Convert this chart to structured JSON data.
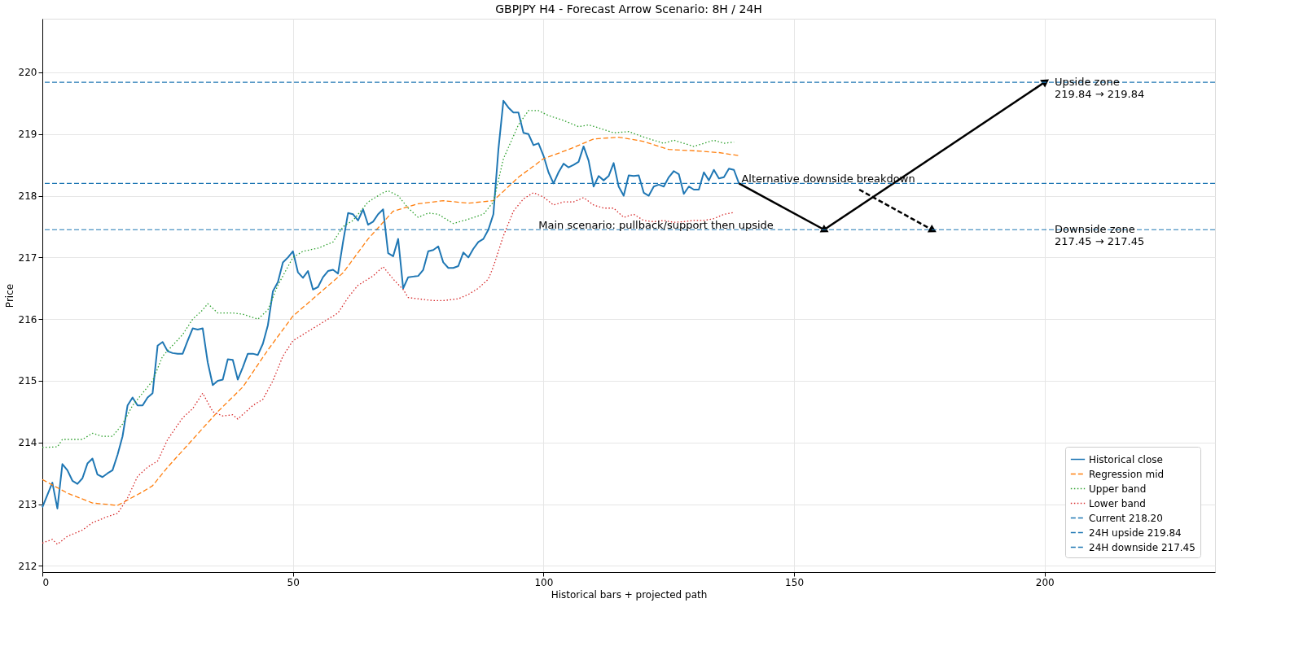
{
  "chart_data": {
    "type": "line",
    "title": "GBPJPY H4 - Forecast Arrow Scenario: 8H / 24H",
    "xlabel": "Historical bars + projected path",
    "ylabel": "Price",
    "xlim": [
      0,
      234
    ],
    "ylim": [
      211.9,
      220.87
    ],
    "xticks": [
      0,
      50,
      100,
      150,
      200
    ],
    "yticks": [
      212,
      213,
      214,
      215,
      216,
      217,
      218,
      219,
      220
    ],
    "grid": true,
    "legend": "bottom right",
    "series": [
      {
        "name": "Historical close",
        "color": "#1f77b4",
        "line_style": "solid",
        "x": [
          0,
          2,
          3,
          4,
          5,
          6,
          7,
          8,
          9,
          10,
          11,
          12,
          13,
          14,
          15,
          16,
          17,
          18,
          19,
          20,
          21,
          22,
          23,
          24,
          25,
          26,
          27,
          28,
          29,
          30,
          31,
          32,
          33,
          34,
          35,
          36,
          37,
          38,
          39,
          40,
          41,
          42,
          43,
          44,
          45,
          46,
          47,
          48,
          49,
          50,
          51,
          52,
          53,
          54,
          55,
          56,
          57,
          58,
          59,
          60,
          61,
          62,
          63,
          64,
          65,
          66,
          67,
          68,
          69,
          70,
          71,
          72,
          73,
          74,
          75,
          76,
          77,
          78,
          79,
          80,
          81,
          82,
          83,
          84,
          85,
          86,
          87,
          88,
          89,
          90,
          91,
          92,
          93,
          94,
          95,
          96,
          97,
          98,
          99,
          100,
          101,
          102,
          103,
          104,
          105,
          106,
          107,
          108,
          109,
          110,
          111,
          112,
          113,
          114,
          115,
          116,
          117,
          118,
          119,
          120,
          121,
          122,
          123,
          124,
          125,
          126,
          127,
          128,
          129,
          130,
          131,
          132,
          133,
          134,
          135,
          136,
          137,
          138,
          139
        ],
        "values": [
          212.95,
          213.35,
          212.93,
          213.65,
          213.55,
          213.38,
          213.33,
          213.42,
          213.66,
          213.74,
          213.48,
          213.44,
          213.5,
          213.55,
          213.8,
          214.1,
          214.6,
          214.73,
          214.6,
          214.6,
          214.73,
          214.8,
          215.57,
          215.63,
          215.48,
          215.45,
          215.44,
          215.44,
          215.65,
          215.85,
          215.83,
          215.85,
          215.3,
          214.93,
          215.0,
          215.02,
          215.35,
          215.34,
          215.02,
          215.22,
          215.44,
          215.44,
          215.42,
          215.6,
          215.9,
          216.45,
          216.6,
          216.92,
          217.0,
          217.1,
          216.76,
          216.67,
          216.78,
          216.48,
          216.52,
          216.68,
          216.78,
          216.8,
          216.74,
          217.25,
          217.72,
          217.7,
          217.6,
          217.78,
          217.53,
          217.58,
          217.7,
          217.78,
          217.07,
          217.02,
          217.3,
          216.5,
          216.68,
          216.69,
          216.7,
          216.8,
          217.1,
          217.12,
          217.18,
          216.92,
          216.83,
          216.83,
          216.86,
          217.08,
          217.0,
          217.14,
          217.25,
          217.3,
          217.45,
          217.7,
          218.75,
          219.54,
          219.43,
          219.35,
          219.35,
          219.02,
          219.0,
          218.82,
          218.85,
          218.65,
          218.38,
          218.2,
          218.38,
          218.52,
          218.46,
          218.5,
          218.55,
          218.8,
          218.57,
          218.15,
          218.32,
          218.25,
          218.32,
          218.53,
          218.15,
          218.0,
          218.33,
          218.32,
          218.33,
          218.05,
          218.0,
          218.15,
          218.18,
          218.15,
          218.3,
          218.4,
          218.35,
          218.03,
          218.15,
          218.1,
          218.1,
          218.38,
          218.25,
          218.42,
          218.28,
          218.3,
          218.44,
          218.42,
          218.2
        ]
      },
      {
        "name": "Regression mid",
        "color": "#ff7f0e",
        "line_style": "dashed",
        "x": [
          0,
          5,
          10,
          15,
          20,
          22,
          25,
          30,
          35,
          40,
          45,
          50,
          55,
          60,
          65,
          70,
          75,
          80,
          85,
          90,
          95,
          100,
          105,
          110,
          115,
          120,
          125,
          130,
          135,
          139
        ],
        "values": [
          213.4,
          213.18,
          213.02,
          212.98,
          213.2,
          213.3,
          213.6,
          214.05,
          214.5,
          214.9,
          215.5,
          216.05,
          216.4,
          216.75,
          217.3,
          217.75,
          217.87,
          217.92,
          217.88,
          217.92,
          218.3,
          218.6,
          218.75,
          218.92,
          218.95,
          218.88,
          218.75,
          218.73,
          218.7,
          218.65
        ]
      },
      {
        "name": "Upper band",
        "color": "#2ca02c",
        "line_style": "dotted",
        "x": [
          0,
          3,
          4,
          8,
          10,
          12,
          14,
          16,
          18,
          22,
          24,
          28,
          30,
          32,
          33,
          35,
          38,
          40,
          43,
          45,
          47,
          50,
          52,
          55,
          58,
          60,
          62,
          65,
          68,
          69,
          71,
          73,
          75,
          77,
          79,
          82,
          85,
          88,
          90,
          92,
          95,
          97,
          99,
          101,
          104,
          107,
          109,
          111,
          114,
          117,
          119,
          122,
          124,
          126,
          128,
          130,
          132,
          134,
          136,
          138
        ],
        "values": [
          213.92,
          213.93,
          214.05,
          214.05,
          214.15,
          214.1,
          214.1,
          214.3,
          214.6,
          215.0,
          215.4,
          215.75,
          216.0,
          216.15,
          216.25,
          216.1,
          216.1,
          216.08,
          216.0,
          216.15,
          216.55,
          217.0,
          217.1,
          217.15,
          217.25,
          217.5,
          217.6,
          217.9,
          218.05,
          218.08,
          218.0,
          217.8,
          217.65,
          217.72,
          217.7,
          217.55,
          217.62,
          217.7,
          217.9,
          218.6,
          219.15,
          219.38,
          219.38,
          219.3,
          219.22,
          219.12,
          219.15,
          219.1,
          219.02,
          219.04,
          218.98,
          218.9,
          218.85,
          218.9,
          218.85,
          218.8,
          218.85,
          218.9,
          218.85,
          218.87
        ]
      },
      {
        "name": "Lower band",
        "color": "#d62728",
        "line_style": "dotted",
        "x": [
          0,
          2,
          3,
          5,
          8,
          10,
          13,
          15,
          17,
          19,
          21,
          23,
          25,
          28,
          30,
          32,
          34,
          36,
          38,
          39,
          42,
          44,
          46,
          48,
          50,
          53,
          55,
          57,
          59,
          61,
          63,
          66,
          68,
          70,
          72,
          73,
          76,
          78,
          80,
          83,
          85,
          87,
          89,
          90,
          92,
          94,
          96,
          98,
          100,
          102,
          104,
          106,
          108,
          110,
          112,
          114,
          116,
          118,
          120,
          122,
          124,
          126,
          128,
          130,
          132,
          134,
          136,
          138
        ],
        "values": [
          212.37,
          212.43,
          212.35,
          212.48,
          212.58,
          212.7,
          212.8,
          212.85,
          213.1,
          213.45,
          213.6,
          213.7,
          214.05,
          214.4,
          214.55,
          214.8,
          214.5,
          214.43,
          214.45,
          214.38,
          214.6,
          214.7,
          215.0,
          215.4,
          215.65,
          215.8,
          215.9,
          216.0,
          216.1,
          216.35,
          216.55,
          216.7,
          216.85,
          216.65,
          216.48,
          216.35,
          216.32,
          216.3,
          216.3,
          216.33,
          216.4,
          216.5,
          216.65,
          216.85,
          217.35,
          217.75,
          217.95,
          218.05,
          217.98,
          217.85,
          217.9,
          217.9,
          217.97,
          217.85,
          217.8,
          217.8,
          217.65,
          217.7,
          217.6,
          217.58,
          217.6,
          217.57,
          217.58,
          217.6,
          217.6,
          217.63,
          217.7,
          217.73
        ]
      },
      {
        "color": "#000000",
        "line_style": "solid",
        "x": [
          139,
          156
        ],
        "values": [
          218.2,
          217.45
        ]
      },
      {
        "color": "#000000",
        "line_style": "solid",
        "x": [
          156,
          200
        ],
        "values": [
          217.45,
          219.84
        ]
      },
      {
        "color": "#000000",
        "line_style": "dashed",
        "x": [
          163,
          177.5
        ],
        "values": [
          218.1,
          217.45
        ]
      }
    ],
    "ref_lines": [
      {
        "axis": "y",
        "value": 218.2,
        "label": "Current 218.20",
        "color": "#1f77b4",
        "line_style": "dashed"
      },
      {
        "axis": "y",
        "value": 219.84,
        "label": "24H upside 219.84",
        "color": "#1f77b4",
        "line_style": "dashed"
      },
      {
        "axis": "y",
        "value": 217.45,
        "label": "24H downside 217.45",
        "color": "#1f77b4",
        "line_style": "dashed"
      }
    ],
    "annotations": [
      {
        "text": "Upside zone\n219.84 → 219.84",
        "x": 202,
        "y": 219.84
      },
      {
        "text": "Downside zone\n217.45 → 217.45",
        "x": 202,
        "y": 217.45
      },
      {
        "text": "Alternative downside breakdown",
        "x": 139.5,
        "y": 218.2
      },
      {
        "text": "Main scenario: pullback/support then upside",
        "x": 99,
        "y": 217.45
      }
    ]
  }
}
